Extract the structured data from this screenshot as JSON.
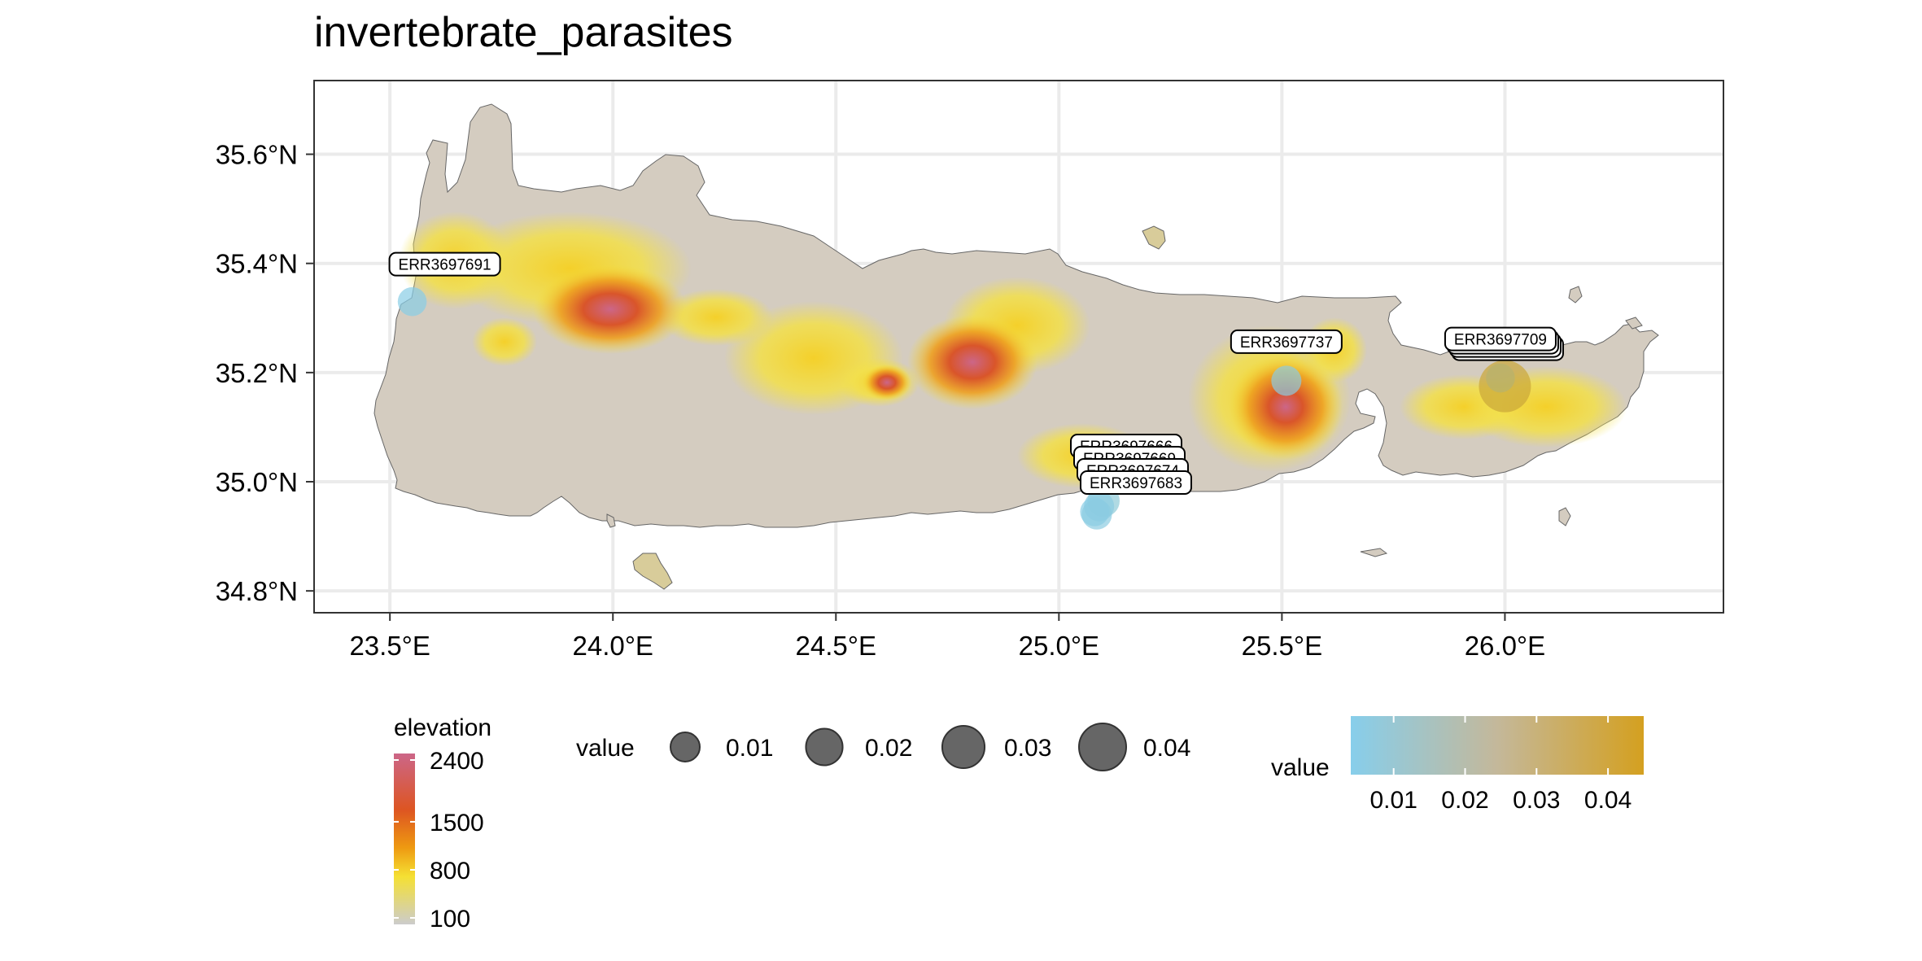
{
  "chart_data": {
    "type": "map",
    "title": "invertebrate_parasites",
    "xlim": [
      23.33,
      26.49
    ],
    "ylim": [
      34.76,
      35.735
    ],
    "x_ticks": [
      {
        "value": 23.5,
        "label": "23.5°E"
      },
      {
        "value": 24.0,
        "label": "24.0°E"
      },
      {
        "value": 24.5,
        "label": "24.5°E"
      },
      {
        "value": 25.0,
        "label": "25.0°E"
      },
      {
        "value": 25.5,
        "label": "25.5°E"
      },
      {
        "value": 26.0,
        "label": "26.0°E"
      }
    ],
    "y_ticks": [
      {
        "value": 34.8,
        "label": "34.8°N"
      },
      {
        "value": 35.0,
        "label": "35.0°N"
      },
      {
        "value": 35.2,
        "label": "35.2°N"
      },
      {
        "value": 35.4,
        "label": "35.4°N"
      },
      {
        "value": 35.6,
        "label": "35.6°N"
      }
    ],
    "grid": true,
    "points": [
      {
        "label": "ERR3697691",
        "lon": 23.55,
        "lat": 35.33,
        "value": 0.005
      },
      {
        "label": "ERR3697737",
        "lon": 25.51,
        "lat": 35.185,
        "value": 0.006
      },
      {
        "label": "ERR3697709",
        "lon": 25.99,
        "lat": 35.19,
        "value": 0.005
      },
      {
        "label": "",
        "lon": 26.0,
        "lat": 35.175,
        "value": 0.04
      },
      {
        "label": "ERR3697666",
        "lon": 25.1,
        "lat": 34.965,
        "value": 0.008
      },
      {
        "label": "ERR3697669",
        "lon": 25.09,
        "lat": 34.955,
        "value": 0.006
      },
      {
        "label": "ERR3697674",
        "lon": 25.08,
        "lat": 34.945,
        "value": 0.005
      },
      {
        "label": "ERR3697683",
        "lon": 25.085,
        "lat": 34.94,
        "value": 0.006
      }
    ],
    "elevation_legend": {
      "title": "elevation",
      "labels": [
        "2400",
        "1500",
        "800",
        "100"
      ],
      "values": [
        2400,
        1500,
        800,
        100
      ],
      "colors": [
        "#cc6688",
        "#dd5522",
        "#ee9911",
        "#f5e033",
        "#cccccc"
      ]
    },
    "size_legend": {
      "title": "value",
      "labels": [
        "0.01",
        "0.02",
        "0.03",
        "0.04"
      ],
      "values": [
        0.01,
        0.02,
        0.03,
        0.04
      ]
    },
    "color_legend": {
      "title": "value",
      "labels": [
        "0.01",
        "0.02",
        "0.03",
        "0.04"
      ],
      "values": [
        0.01,
        0.02,
        0.03,
        0.04
      ],
      "range": [
        0.004,
        0.045
      ],
      "low_color": "#87ceeb",
      "high_color": "#d4a020"
    }
  }
}
